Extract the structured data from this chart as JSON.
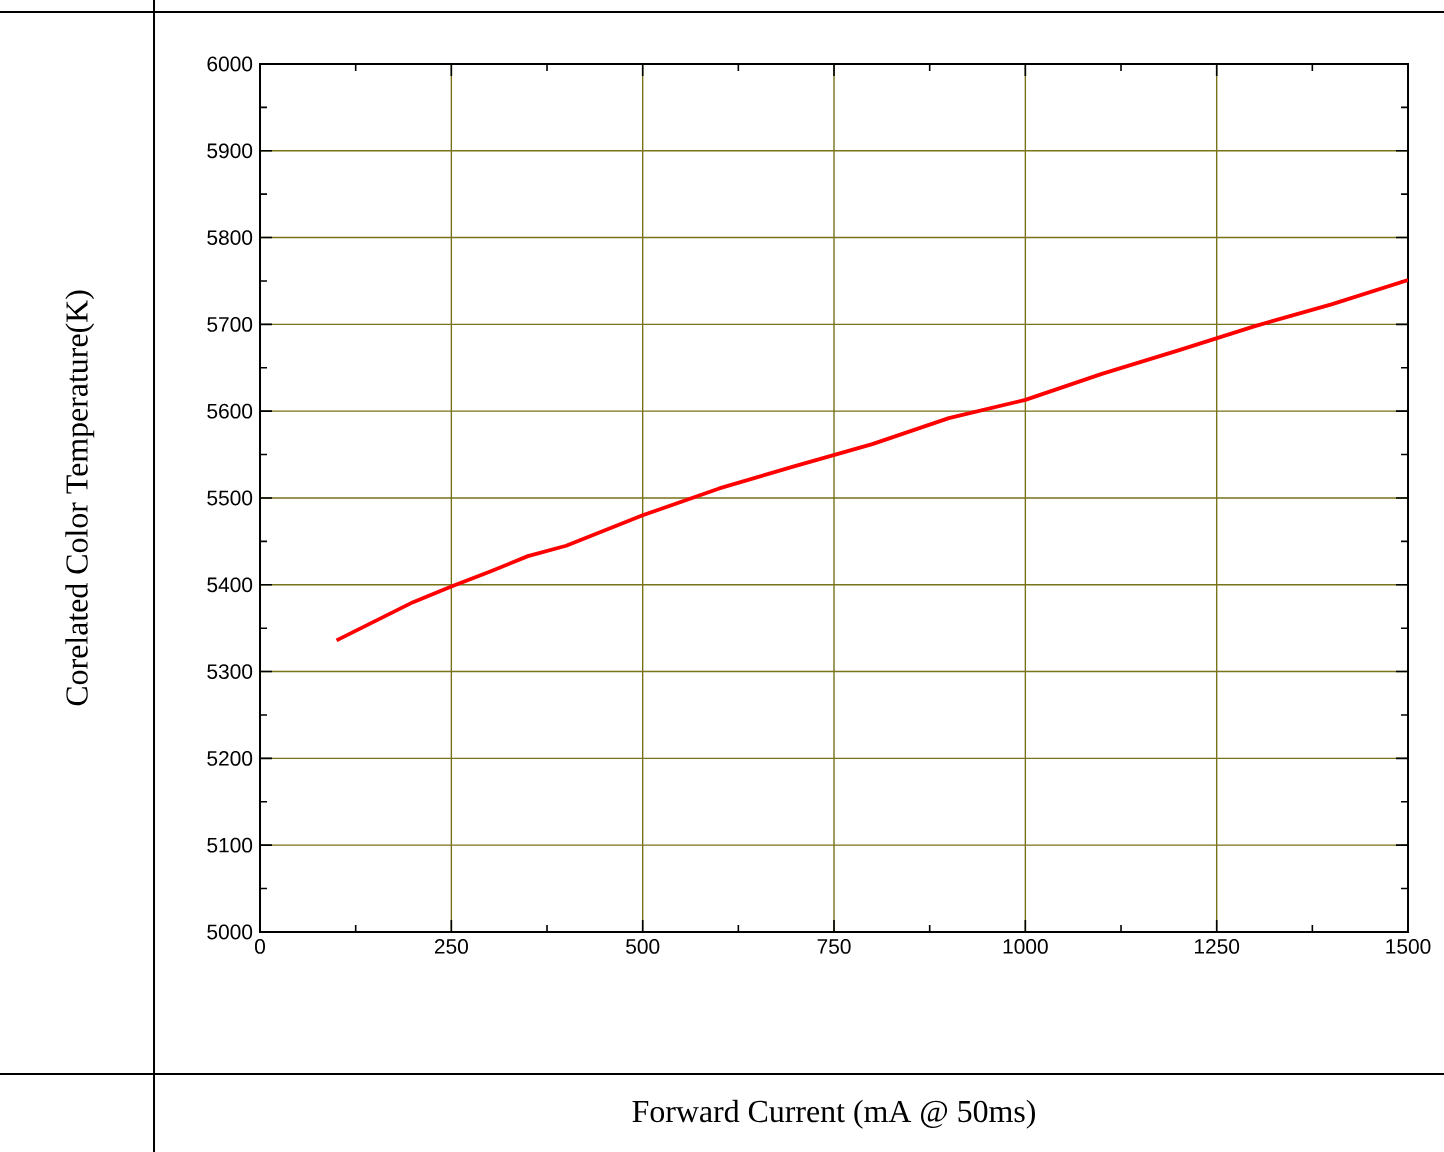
{
  "chart_data": {
    "type": "line",
    "xlabel": "Forward Current (mA @ 50ms)",
    "ylabel": "Corelated Color Temperature(K)",
    "xlim": [
      0,
      1500
    ],
    "xticks": [
      0,
      250,
      500,
      750,
      1000,
      1250,
      1500
    ],
    "ylim": [
      5000,
      6000
    ],
    "yticks": [
      5000,
      5100,
      5200,
      5300,
      5400,
      5500,
      5600,
      5700,
      5800,
      5900,
      6000
    ],
    "grid": true,
    "marker": "none",
    "line_style": "solid",
    "series": [
      {
        "color": "#ff0000",
        "x": [
          100,
          200,
          250,
          300,
          350,
          400,
          500,
          600,
          700,
          800,
          900,
          1000,
          1100,
          1200,
          1300,
          1400,
          1500
        ],
        "values": [
          5336,
          5380,
          5398,
          5415,
          5433,
          5445,
          5480,
          5511,
          5537,
          5562,
          5592,
          5613,
          5643,
          5670,
          5698,
          5723,
          5751
        ]
      }
    ]
  }
}
